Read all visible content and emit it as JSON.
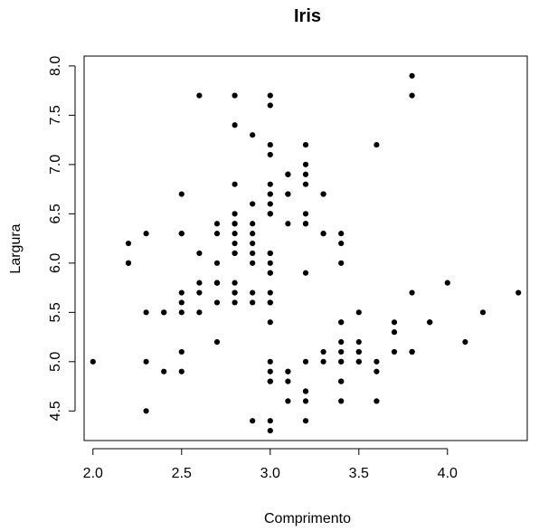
{
  "chart_data": {
    "type": "scatter",
    "title": "Iris",
    "xlabel": "Comprimento",
    "ylabel": "Largura",
    "xlim": [
      1.95,
      4.45
    ],
    "ylim": [
      4.2,
      8.1
    ],
    "x_ticks": [
      "2.0",
      "2.5",
      "3.0",
      "3.5",
      "4.0"
    ],
    "y_ticks": [
      "4.5",
      "5.0",
      "5.5",
      "6.0",
      "6.5",
      "7.0",
      "7.5",
      "8.0"
    ],
    "grid": false,
    "legend": "none",
    "colors": {
      "points": "#000000",
      "axes": "#000000",
      "background": "#ffffff"
    },
    "points": [
      [
        3.5,
        5.1
      ],
      [
        3.0,
        4.9
      ],
      [
        3.2,
        4.7
      ],
      [
        3.1,
        4.6
      ],
      [
        3.6,
        5.0
      ],
      [
        3.9,
        5.4
      ],
      [
        3.4,
        4.6
      ],
      [
        3.4,
        5.0
      ],
      [
        2.9,
        4.4
      ],
      [
        3.1,
        4.9
      ],
      [
        3.7,
        5.4
      ],
      [
        3.4,
        4.8
      ],
      [
        3.0,
        4.8
      ],
      [
        3.0,
        4.3
      ],
      [
        4.0,
        5.8
      ],
      [
        4.4,
        5.7
      ],
      [
        3.9,
        5.4
      ],
      [
        3.5,
        5.1
      ],
      [
        3.8,
        5.7
      ],
      [
        3.8,
        5.1
      ],
      [
        3.4,
        5.4
      ],
      [
        3.7,
        5.1
      ],
      [
        3.6,
        4.6
      ],
      [
        3.3,
        5.1
      ],
      [
        3.4,
        4.8
      ],
      [
        3.0,
        5.0
      ],
      [
        3.4,
        5.0
      ],
      [
        3.5,
        5.2
      ],
      [
        3.4,
        5.2
      ],
      [
        3.2,
        4.7
      ],
      [
        3.1,
        4.8
      ],
      [
        3.4,
        5.4
      ],
      [
        4.1,
        5.2
      ],
      [
        4.2,
        5.5
      ],
      [
        3.1,
        4.9
      ],
      [
        3.2,
        5.0
      ],
      [
        3.5,
        5.5
      ],
      [
        3.6,
        4.9
      ],
      [
        3.0,
        4.4
      ],
      [
        3.4,
        5.1
      ],
      [
        3.5,
        5.0
      ],
      [
        2.3,
        4.5
      ],
      [
        3.2,
        4.4
      ],
      [
        3.5,
        5.0
      ],
      [
        3.8,
        5.1
      ],
      [
        3.0,
        4.8
      ],
      [
        3.8,
        5.1
      ],
      [
        3.2,
        4.6
      ],
      [
        3.7,
        5.3
      ],
      [
        3.3,
        5.0
      ],
      [
        3.2,
        7.0
      ],
      [
        3.2,
        6.4
      ],
      [
        3.1,
        6.9
      ],
      [
        2.3,
        5.5
      ],
      [
        2.8,
        6.5
      ],
      [
        2.8,
        5.7
      ],
      [
        3.3,
        6.3
      ],
      [
        2.4,
        4.9
      ],
      [
        2.9,
        6.6
      ],
      [
        2.7,
        5.2
      ],
      [
        2.0,
        5.0
      ],
      [
        3.0,
        5.9
      ],
      [
        2.2,
        6.0
      ],
      [
        2.9,
        6.1
      ],
      [
        2.9,
        5.6
      ],
      [
        3.1,
        6.7
      ],
      [
        3.0,
        5.6
      ],
      [
        2.7,
        5.8
      ],
      [
        2.2,
        6.2
      ],
      [
        2.5,
        5.6
      ],
      [
        3.2,
        5.9
      ],
      [
        2.8,
        6.1
      ],
      [
        2.5,
        6.3
      ],
      [
        2.8,
        6.1
      ],
      [
        2.9,
        6.4
      ],
      [
        3.0,
        6.6
      ],
      [
        2.8,
        6.8
      ],
      [
        3.0,
        6.7
      ],
      [
        2.9,
        6.0
      ],
      [
        2.6,
        5.7
      ],
      [
        2.4,
        5.5
      ],
      [
        2.4,
        5.5
      ],
      [
        2.7,
        5.8
      ],
      [
        2.7,
        6.0
      ],
      [
        3.0,
        5.4
      ],
      [
        3.4,
        6.0
      ],
      [
        3.1,
        6.7
      ],
      [
        2.3,
        6.3
      ],
      [
        3.0,
        5.6
      ],
      [
        2.5,
        5.5
      ],
      [
        2.6,
        5.5
      ],
      [
        3.0,
        6.1
      ],
      [
        2.6,
        5.8
      ],
      [
        2.3,
        5.0
      ],
      [
        2.7,
        5.6
      ],
      [
        3.0,
        5.7
      ],
      [
        2.9,
        5.7
      ],
      [
        2.9,
        6.2
      ],
      [
        2.5,
        5.1
      ],
      [
        2.8,
        5.7
      ],
      [
        3.3,
        6.3
      ],
      [
        2.7,
        5.8
      ],
      [
        3.0,
        7.1
      ],
      [
        2.9,
        6.3
      ],
      [
        3.0,
        6.5
      ],
      [
        3.0,
        7.6
      ],
      [
        2.5,
        4.9
      ],
      [
        2.9,
        7.3
      ],
      [
        2.5,
        6.7
      ],
      [
        3.6,
        7.2
      ],
      [
        3.2,
        6.5
      ],
      [
        2.7,
        6.4
      ],
      [
        3.0,
        6.8
      ],
      [
        2.5,
        5.7
      ],
      [
        2.8,
        5.8
      ],
      [
        3.2,
        6.4
      ],
      [
        3.0,
        6.5
      ],
      [
        3.8,
        7.7
      ],
      [
        2.6,
        7.7
      ],
      [
        2.2,
        6.0
      ],
      [
        3.2,
        6.9
      ],
      [
        2.8,
        5.6
      ],
      [
        2.8,
        7.7
      ],
      [
        2.7,
        6.3
      ],
      [
        3.3,
        6.7
      ],
      [
        3.2,
        7.2
      ],
      [
        2.8,
        6.2
      ],
      [
        3.0,
        6.1
      ],
      [
        2.8,
        6.4
      ],
      [
        3.0,
        7.2
      ],
      [
        2.8,
        7.4
      ],
      [
        3.8,
        7.9
      ],
      [
        2.8,
        6.4
      ],
      [
        2.8,
        6.3
      ],
      [
        2.6,
        6.1
      ],
      [
        3.0,
        7.7
      ],
      [
        3.4,
        6.3
      ],
      [
        3.1,
        6.4
      ],
      [
        3.0,
        6.0
      ],
      [
        3.1,
        6.9
      ],
      [
        3.1,
        6.7
      ],
      [
        3.1,
        6.9
      ],
      [
        2.7,
        5.8
      ],
      [
        3.2,
        6.8
      ],
      [
        3.3,
        6.7
      ],
      [
        3.0,
        6.7
      ],
      [
        2.5,
        6.3
      ],
      [
        3.0,
        6.5
      ],
      [
        3.4,
        6.2
      ],
      [
        3.0,
        5.9
      ]
    ]
  }
}
